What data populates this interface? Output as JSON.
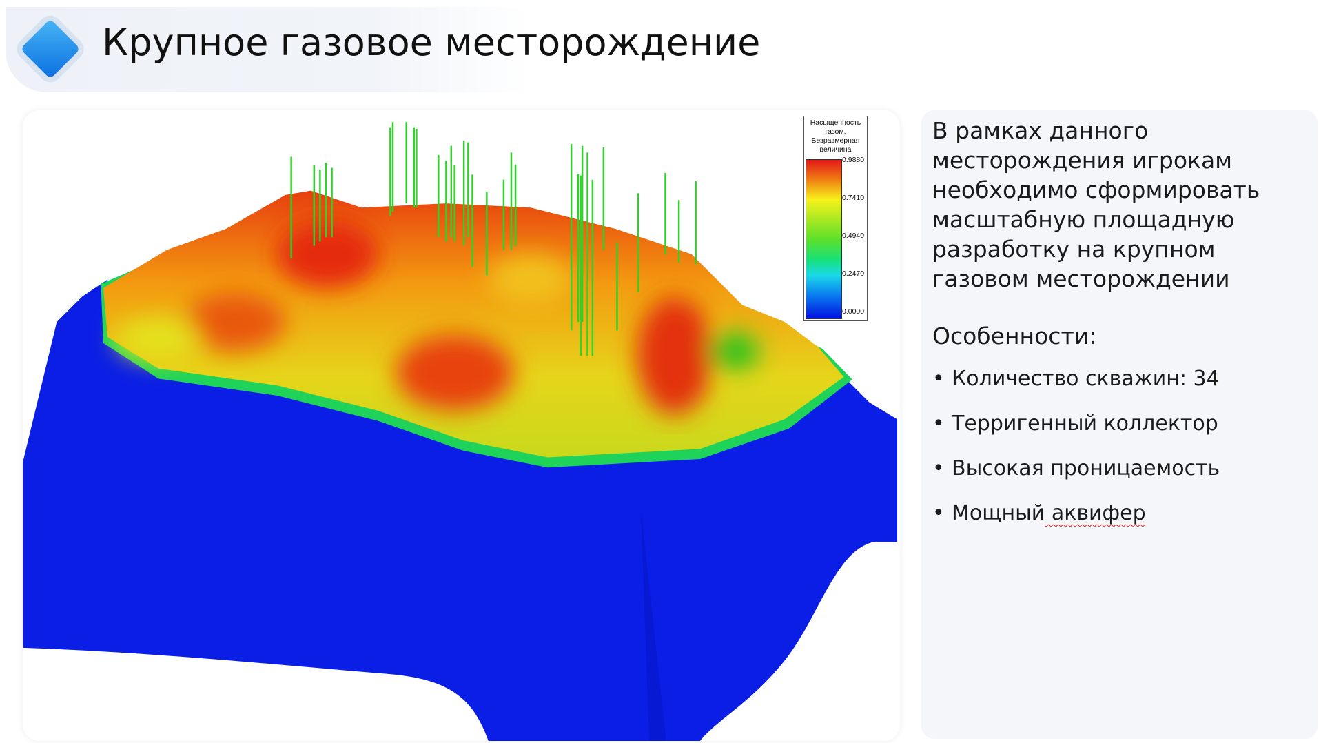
{
  "header": {
    "title": "Крупное газовое месторождение"
  },
  "figure": {
    "legend": {
      "title_lines": [
        "Насыщенность",
        "газом,",
        "Безразмерная",
        "величина"
      ],
      "ticks": [
        "0.9880",
        "0.7410",
        "0.4940",
        "0.2470",
        "0.0000"
      ]
    }
  },
  "description": {
    "paragraph": "В рамках данного месторождения игрокам необходимо сформировать масштабную площадную разработку на крупном газовом месторождении",
    "features_title": "Особенности:",
    "features": [
      "Количество скважин: 34",
      "Терригенный коллектор",
      "Высокая проницаемость",
      "Мощный аквифер"
    ]
  }
}
